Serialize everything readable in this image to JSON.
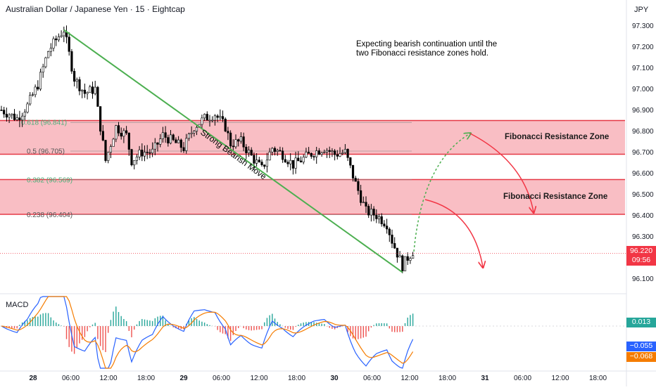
{
  "header": {
    "title": "Australian Dollar / Japanese Yen · 15 · Eightcap",
    "currency": "JPY"
  },
  "annotation": {
    "line1": "Expecting bearish continuation until the",
    "line2": "two Fibonacci resistance zones hold."
  },
  "zones": [
    {
      "label": "Fibonacci Resistance Zone",
      "top": 96.85,
      "bottom": 96.69
    },
    {
      "label": "Fibonacci Resistance Zone",
      "top": 96.57,
      "bottom": 96.405
    }
  ],
  "trend_label": "Strong Bearish Move",
  "macd": {
    "label": "MACD",
    "values": [
      "0.013",
      "−0.055",
      "−0.068"
    ],
    "colors": [
      "#26a69a",
      "#2962ff",
      "#f57c00"
    ]
  },
  "last_price": {
    "value": "96.220",
    "countdown": "09:56",
    "color": "#f23645"
  },
  "colors": {
    "zone_fill": "#f7a8b0",
    "zone_border": "#e53946",
    "up": "#ffffff",
    "down": "#000000",
    "trend": "#4caf50",
    "arrow_red": "#f23645",
    "arrow_green": "#4caf50"
  },
  "chart_data": {
    "type": "candlestick",
    "y_axis": {
      "ticks": [
        "97.300",
        "97.200",
        "97.100",
        "97.000",
        "96.900",
        "96.800",
        "96.700",
        "96.600",
        "96.500",
        "96.400",
        "96.300",
        "96.100"
      ],
      "range": [
        96.0,
        97.35
      ]
    },
    "x_axis": {
      "ticks": [
        "28",
        "06:00",
        "12:00",
        "18:00",
        "29",
        "06:00",
        "12:00",
        "18:00",
        "30",
        "06:00",
        "12:00",
        "18:00",
        "31",
        "06:00",
        "12:00",
        "18:00"
      ]
    },
    "fib_levels": [
      {
        "label": "0.618 (96.841)",
        "value": 96.841
      },
      {
        "label": "0.5 (96.705)",
        "value": 96.705
      },
      {
        "label": "0.382 (96.569)",
        "value": 96.569
      },
      {
        "label": "0.238 (96.404)",
        "value": 96.404
      }
    ],
    "close_path": [
      [
        0,
        96.9
      ],
      [
        6,
        96.86
      ],
      [
        10,
        96.92
      ],
      [
        14,
        97.02
      ],
      [
        18,
        97.18
      ],
      [
        22,
        97.25
      ],
      [
        24,
        97.28
      ],
      [
        28,
        97.05
      ],
      [
        32,
        96.98
      ],
      [
        36,
        97.0
      ],
      [
        37,
        96.9
      ],
      [
        40,
        96.66
      ],
      [
        44,
        96.82
      ],
      [
        48,
        96.78
      ],
      [
        50,
        96.66
      ],
      [
        54,
        96.7
      ],
      [
        58,
        96.7
      ],
      [
        62,
        96.78
      ],
      [
        66,
        96.75
      ],
      [
        70,
        96.72
      ],
      [
        74,
        96.82
      ],
      [
        78,
        96.86
      ],
      [
        82,
        96.88
      ],
      [
        86,
        96.82
      ],
      [
        88,
        96.74
      ],
      [
        92,
        96.75
      ],
      [
        96,
        96.68
      ],
      [
        100,
        96.62
      ],
      [
        104,
        96.72
      ],
      [
        108,
        96.69
      ],
      [
        112,
        96.64
      ],
      [
        116,
        96.67
      ],
      [
        120,
        96.7
      ],
      [
        124,
        96.72
      ],
      [
        128,
        96.69
      ],
      [
        132,
        96.7
      ],
      [
        136,
        96.55
      ],
      [
        140,
        96.42
      ],
      [
        144,
        96.4
      ],
      [
        148,
        96.36
      ],
      [
        150,
        96.28
      ],
      [
        152,
        96.22
      ],
      [
        154,
        96.16
      ],
      [
        156,
        96.2
      ],
      [
        158,
        96.23
      ]
    ],
    "trend_line": {
      "from": [
        24,
        97.28
      ],
      "to": [
        154,
        96.13
      ]
    },
    "bars": 159
  }
}
